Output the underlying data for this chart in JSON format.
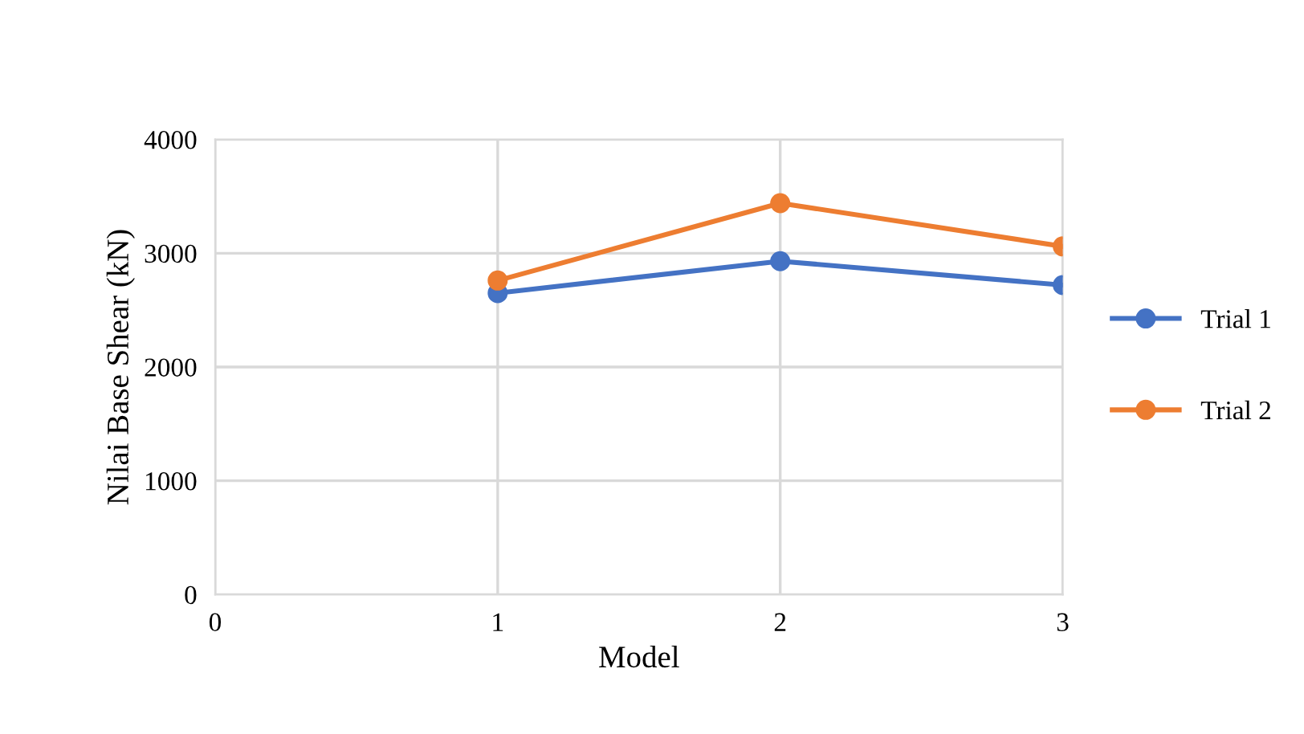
{
  "chart_data": {
    "type": "line",
    "xlabel": "Model",
    "ylabel": "Nilai Base Shear (kN)",
    "x": [
      1,
      2,
      3
    ],
    "series": [
      {
        "name": "Trial 1",
        "color": "#4472c4",
        "values": [
          2650,
          2930,
          2720
        ]
      },
      {
        "name": "Trial 2",
        "color": "#ed7d31",
        "values": [
          2760,
          3440,
          3060
        ]
      }
    ],
    "xlim": [
      0,
      3
    ],
    "xticks": [
      0,
      1,
      2,
      3
    ],
    "ylim": [
      0,
      4000
    ],
    "yticks": [
      0,
      1000,
      2000,
      3000,
      4000
    ],
    "grid": true,
    "legend": "right",
    "marker": "circle",
    "line_style": "solid"
  }
}
